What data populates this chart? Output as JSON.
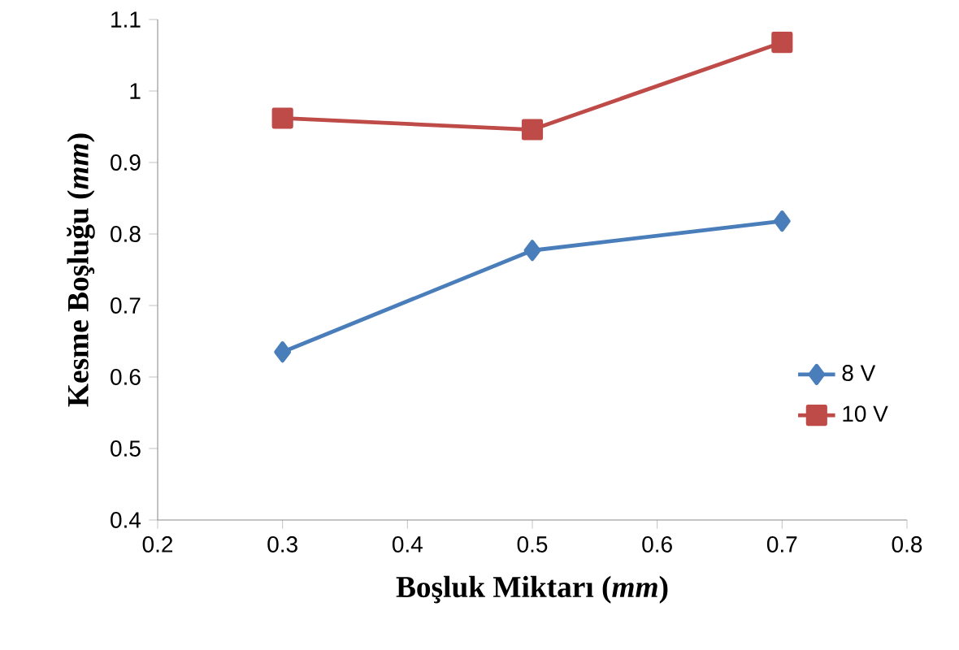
{
  "chart_data": {
    "type": "line",
    "xlabel": "Boşluk Miktarı (*mm*)",
    "ylabel": "Kesme Boşluğu (*mm*)",
    "x": [
      0.3,
      0.5,
      0.7
    ],
    "series": [
      {
        "name": "8 V",
        "color": "#4a7ebb",
        "marker": "diamond",
        "values": [
          0.635,
          0.777,
          0.818
        ]
      },
      {
        "name": "10 V",
        "color": "#be4b48",
        "marker": "square",
        "values": [
          0.962,
          0.946,
          1.068
        ]
      }
    ],
    "xlim": [
      0.2,
      0.8
    ],
    "xticks": [
      0.2,
      0.3,
      0.4,
      0.5,
      0.6,
      0.7,
      0.8
    ],
    "ylim": [
      0.4,
      1.1
    ],
    "yticks": [
      0.4,
      0.5,
      0.6,
      0.7,
      0.8,
      0.9,
      1,
      1.1
    ],
    "grid": false,
    "legend": "right",
    "line_style": "solid"
  }
}
